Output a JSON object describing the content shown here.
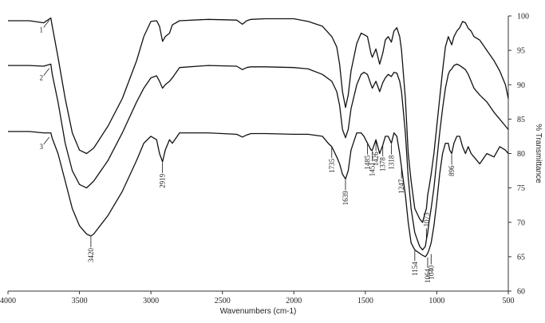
{
  "chart_data": {
    "type": "line",
    "xlabel": "Wavenumbers (cm-1)",
    "ylabel": "% Transmittance",
    "xlim": [
      4000,
      500
    ],
    "ylim": [
      60,
      100
    ],
    "x_reversed": true,
    "grid": false,
    "xticks": [
      "4000",
      "3500",
      "3000",
      "2500",
      "2000",
      "1500",
      "1000",
      "500"
    ],
    "yticks": [
      "60",
      "65",
      "70",
      "75",
      "80",
      "85",
      "90",
      "95",
      "100"
    ],
    "series": [
      {
        "name": "1",
        "x": [
          4000,
          3850,
          3750,
          3700,
          3690,
          3650,
          3600,
          3550,
          3500,
          3450,
          3400,
          3300,
          3200,
          3100,
          3050,
          3000,
          2960,
          2940,
          2919,
          2900,
          2870,
          2850,
          2800,
          2600,
          2400,
          2360,
          2330,
          2300,
          2200,
          2000,
          1900,
          1800,
          1735,
          1700,
          1680,
          1660,
          1639,
          1620,
          1600,
          1560,
          1530,
          1510,
          1485,
          1460,
          1451,
          1426,
          1400,
          1378,
          1360,
          1340,
          1318,
          1300,
          1280,
          1260,
          1247,
          1220,
          1200,
          1180,
          1154,
          1120,
          1100,
          1080,
          1073,
          1064,
          1055,
          1040,
          1020,
          1000,
          980,
          960,
          940,
          920,
          910,
          896,
          880,
          860,
          840,
          820,
          800,
          780,
          760,
          740,
          700,
          650,
          600,
          560,
          520,
          500
        ],
        "y": [
          99.3,
          99.3,
          99.0,
          99.7,
          98.5,
          94.0,
          88.0,
          83.0,
          80.5,
          80.0,
          80.8,
          84.0,
          88.0,
          93.5,
          97.0,
          99.2,
          99.3,
          98.5,
          96.3,
          97.0,
          97.5,
          98.7,
          99.3,
          99.5,
          99.4,
          98.8,
          99.3,
          99.5,
          99.6,
          99.6,
          99.2,
          98.5,
          97.0,
          95.5,
          93.0,
          89.0,
          86.7,
          88.5,
          92.0,
          96.0,
          97.5,
          97.3,
          97.0,
          94.5,
          94.0,
          95.2,
          93.0,
          94.6,
          96.5,
          97.0,
          96.2,
          97.8,
          98.3,
          97.0,
          95.0,
          88.0,
          80.0,
          76.0,
          72.0,
          70.5,
          70.0,
          71.5,
          72.0,
          74.0,
          75.0,
          77.0,
          80.0,
          84.0,
          88.0,
          92.0,
          95.5,
          97.0,
          96.5,
          95.8,
          97.0,
          97.8,
          98.3,
          99.2,
          99.0,
          98.2,
          97.8,
          97.0,
          96.5,
          95.0,
          93.5,
          92.0,
          90.0,
          88.0
        ]
      },
      {
        "name": "2",
        "x": [
          4000,
          3850,
          3750,
          3700,
          3690,
          3650,
          3600,
          3550,
          3500,
          3450,
          3400,
          3300,
          3200,
          3100,
          3050,
          3000,
          2960,
          2940,
          2919,
          2900,
          2870,
          2850,
          2800,
          2600,
          2400,
          2360,
          2330,
          2300,
          2200,
          2000,
          1900,
          1800,
          1735,
          1700,
          1680,
          1660,
          1639,
          1620,
          1600,
          1560,
          1530,
          1510,
          1485,
          1460,
          1451,
          1426,
          1400,
          1378,
          1360,
          1340,
          1318,
          1300,
          1280,
          1260,
          1247,
          1220,
          1200,
          1180,
          1154,
          1120,
          1100,
          1080,
          1073,
          1064,
          1055,
          1040,
          1020,
          1000,
          980,
          960,
          940,
          920,
          910,
          896,
          880,
          860,
          840,
          820,
          800,
          780,
          760,
          740,
          700,
          650,
          600,
          560,
          520,
          500
        ],
        "y": [
          92.8,
          92.8,
          92.7,
          93.0,
          91.5,
          87.5,
          81.5,
          77.5,
          75.5,
          75.0,
          76.0,
          79.0,
          83.0,
          87.5,
          89.5,
          91.0,
          91.3,
          90.5,
          89.5,
          90.0,
          90.5,
          91.0,
          92.5,
          92.8,
          92.7,
          92.2,
          92.5,
          92.6,
          92.6,
          92.5,
          92.3,
          91.5,
          90.5,
          89.0,
          87.0,
          83.5,
          82.3,
          83.5,
          86.5,
          90.0,
          91.5,
          91.8,
          91.5,
          90.0,
          89.5,
          90.5,
          89.0,
          90.3,
          91.0,
          91.5,
          91.2,
          91.8,
          91.7,
          90.5,
          89.0,
          83.0,
          76.5,
          72.0,
          68.5,
          66.5,
          66.0,
          66.5,
          67.5,
          68.5,
          70.0,
          72.0,
          75.0,
          79.0,
          83.0,
          86.5,
          89.5,
          91.5,
          92.0,
          92.3,
          92.8,
          93.0,
          92.8,
          92.5,
          92.2,
          91.5,
          90.5,
          89.5,
          88.5,
          87.5,
          86.0,
          85.0,
          84.0,
          83.5
        ]
      },
      {
        "name": "3",
        "x": [
          4000,
          3850,
          3750,
          3700,
          3690,
          3650,
          3600,
          3550,
          3500,
          3450,
          3420,
          3400,
          3300,
          3200,
          3100,
          3050,
          3000,
          2960,
          2940,
          2919,
          2900,
          2870,
          2850,
          2800,
          2600,
          2400,
          2360,
          2330,
          2300,
          2200,
          2000,
          1900,
          1800,
          1760,
          1735,
          1700,
          1680,
          1660,
          1639,
          1620,
          1600,
          1560,
          1530,
          1510,
          1485,
          1460,
          1451,
          1426,
          1400,
          1378,
          1360,
          1340,
          1318,
          1300,
          1280,
          1260,
          1247,
          1220,
          1200,
          1180,
          1154,
          1120,
          1100,
          1080,
          1073,
          1064,
          1055,
          1040,
          1020,
          1000,
          980,
          960,
          940,
          920,
          910,
          896,
          880,
          860,
          840,
          820,
          800,
          780,
          760,
          740,
          700,
          650,
          600,
          560,
          520,
          500
        ],
        "y": [
          83.2,
          83.2,
          83.0,
          83.0,
          82.2,
          80.0,
          76.0,
          72.0,
          69.5,
          68.3,
          68.0,
          68.3,
          71.0,
          74.5,
          79.0,
          81.5,
          82.5,
          82.0,
          80.0,
          78.8,
          80.5,
          82.0,
          81.5,
          83.0,
          83.0,
          82.8,
          82.4,
          82.7,
          82.9,
          82.9,
          82.8,
          82.8,
          82.5,
          81.5,
          81.0,
          79.5,
          78.5,
          77.0,
          76.3,
          77.5,
          80.5,
          83.0,
          83.0,
          82.5,
          81.5,
          80.5,
          80.5,
          82.0,
          80.0,
          81.2,
          82.5,
          82.5,
          81.5,
          83.0,
          82.5,
          80.0,
          78.0,
          74.0,
          70.0,
          67.0,
          66.0,
          65.5,
          65.2,
          65.0,
          65.2,
          65.5,
          66.0,
          67.0,
          69.5,
          73.0,
          77.0,
          80.0,
          81.5,
          81.5,
          80.5,
          80.0,
          81.5,
          82.5,
          82.5,
          81.0,
          80.0,
          81.0,
          80.0,
          79.5,
          78.5,
          80.0,
          79.5,
          81.0,
          80.5,
          80.0
        ]
      }
    ],
    "curve_labels": [
      {
        "text": "1",
        "x": 3700,
        "y": 99.5
      },
      {
        "text": "2",
        "x": 3700,
        "y": 92.5
      },
      {
        "text": "3",
        "x": 3700,
        "y": 82.5
      }
    ],
    "annotations": [
      {
        "text": "3420",
        "x": 3420,
        "y": 68.0,
        "position": "below"
      },
      {
        "text": "2919",
        "x": 2919,
        "y": 78.8,
        "position": "below"
      },
      {
        "text": "1735",
        "x": 1735,
        "y": 81.0,
        "position": "below"
      },
      {
        "text": "1639",
        "x": 1639,
        "y": 76.3,
        "position": "below"
      },
      {
        "text": "1485",
        "x": 1485,
        "y": 81.5,
        "position": "below"
      },
      {
        "text": "1451",
        "x": 1451,
        "y": 80.5,
        "position": "below"
      },
      {
        "text": "1426",
        "x": 1426,
        "y": 82.0,
        "position": "below"
      },
      {
        "text": "1378",
        "x": 1378,
        "y": 81.2,
        "position": "below"
      },
      {
        "text": "1318",
        "x": 1318,
        "y": 81.5,
        "position": "below"
      },
      {
        "text": "1247",
        "x": 1247,
        "y": 78.0,
        "position": "below"
      },
      {
        "text": "1154",
        "x": 1154,
        "y": 66.0,
        "position": "below"
      },
      {
        "text": "1073",
        "x": 1073,
        "y": 67.5,
        "position": "above"
      },
      {
        "text": "1064",
        "x": 1064,
        "y": 65.0,
        "position": "below"
      },
      {
        "text": "1040",
        "x": 1040,
        "y": 65.5,
        "position": "below"
      },
      {
        "text": "896",
        "x": 896,
        "y": 80.0,
        "position": "below"
      }
    ]
  }
}
